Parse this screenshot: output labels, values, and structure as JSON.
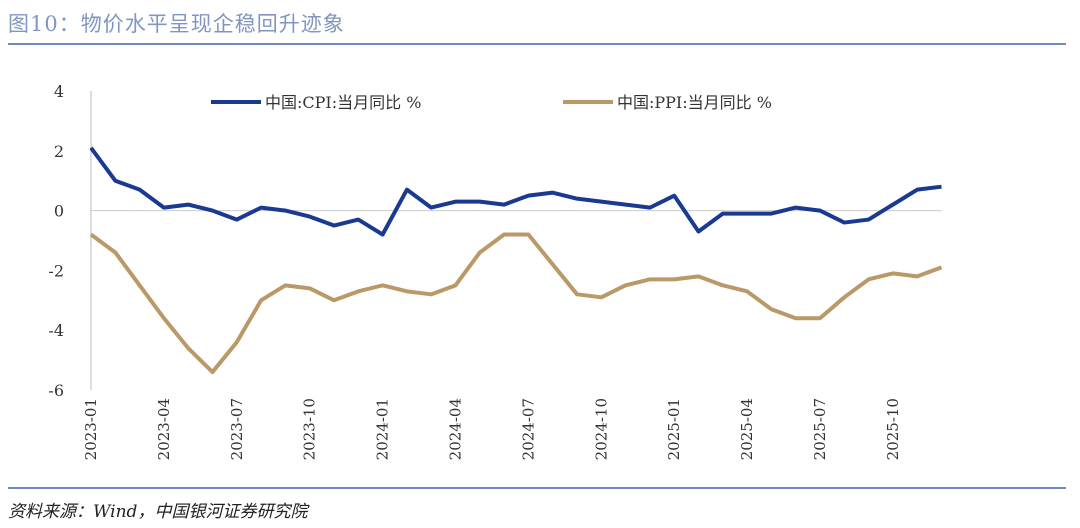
{
  "title": "图10：物价水平呈现企稳回升迹象",
  "source": "资料来源：Wind，中国银河证券研究院",
  "colors": {
    "cpi": "#1a3990",
    "ppi": "#b99968",
    "title": "#8096c2"
  },
  "chart_data": {
    "type": "line",
    "ylim": [
      -6,
      4
    ],
    "yticks": [
      4,
      2,
      0,
      -2,
      -4,
      -6
    ],
    "grid": false,
    "legend": "top",
    "x": [
      "2023-01",
      "2023-02",
      "2023-03",
      "2023-04",
      "2023-05",
      "2023-06",
      "2023-07",
      "2023-08",
      "2023-09",
      "2023-10",
      "2023-11",
      "2023-12",
      "2024-01",
      "2024-02",
      "2024-03",
      "2024-04",
      "2024-05",
      "2024-06",
      "2024-07",
      "2024-08",
      "2024-09",
      "2024-10",
      "2024-11",
      "2024-12",
      "2025-01",
      "2025-02",
      "2025-03",
      "2025-04",
      "2025-05",
      "2025-06",
      "2025-07",
      "2025-08",
      "2025-09",
      "2025-10",
      "2025-11",
      "2025-12"
    ],
    "xticklabels": [
      "2023-01",
      "2023-04",
      "2023-07",
      "2023-10",
      "2024-01",
      "2024-04",
      "2024-07",
      "2024-10",
      "2025-01",
      "2025-04",
      "2025-07",
      "2025-10"
    ],
    "series": [
      {
        "name": "中国:CPI:当月同比 %",
        "values": [
          2.1,
          1.0,
          0.7,
          0.1,
          0.2,
          0.0,
          -0.3,
          0.1,
          0.0,
          -0.2,
          -0.5,
          -0.3,
          -0.8,
          0.7,
          0.1,
          0.3,
          0.3,
          0.2,
          0.5,
          0.6,
          0.4,
          0.3,
          0.2,
          0.1,
          0.5,
          -0.7,
          -0.1,
          -0.1,
          -0.1,
          0.1,
          0.0,
          -0.4,
          -0.3,
          0.2,
          0.7,
          0.8
        ]
      },
      {
        "name": "中国:PPI:当月同比 %",
        "values": [
          -0.8,
          -1.4,
          -2.5,
          -3.6,
          -4.6,
          -5.4,
          -4.4,
          -3.0,
          -2.5,
          -2.6,
          -3.0,
          -2.7,
          -2.5,
          -2.7,
          -2.8,
          -2.5,
          -1.4,
          -0.8,
          -0.8,
          -1.8,
          -2.8,
          -2.9,
          -2.5,
          -2.3,
          -2.3,
          -2.2,
          -2.5,
          -2.7,
          -3.3,
          -3.6,
          -3.6,
          -2.9,
          -2.3,
          -2.1,
          -2.2,
          -1.9
        ]
      }
    ]
  }
}
